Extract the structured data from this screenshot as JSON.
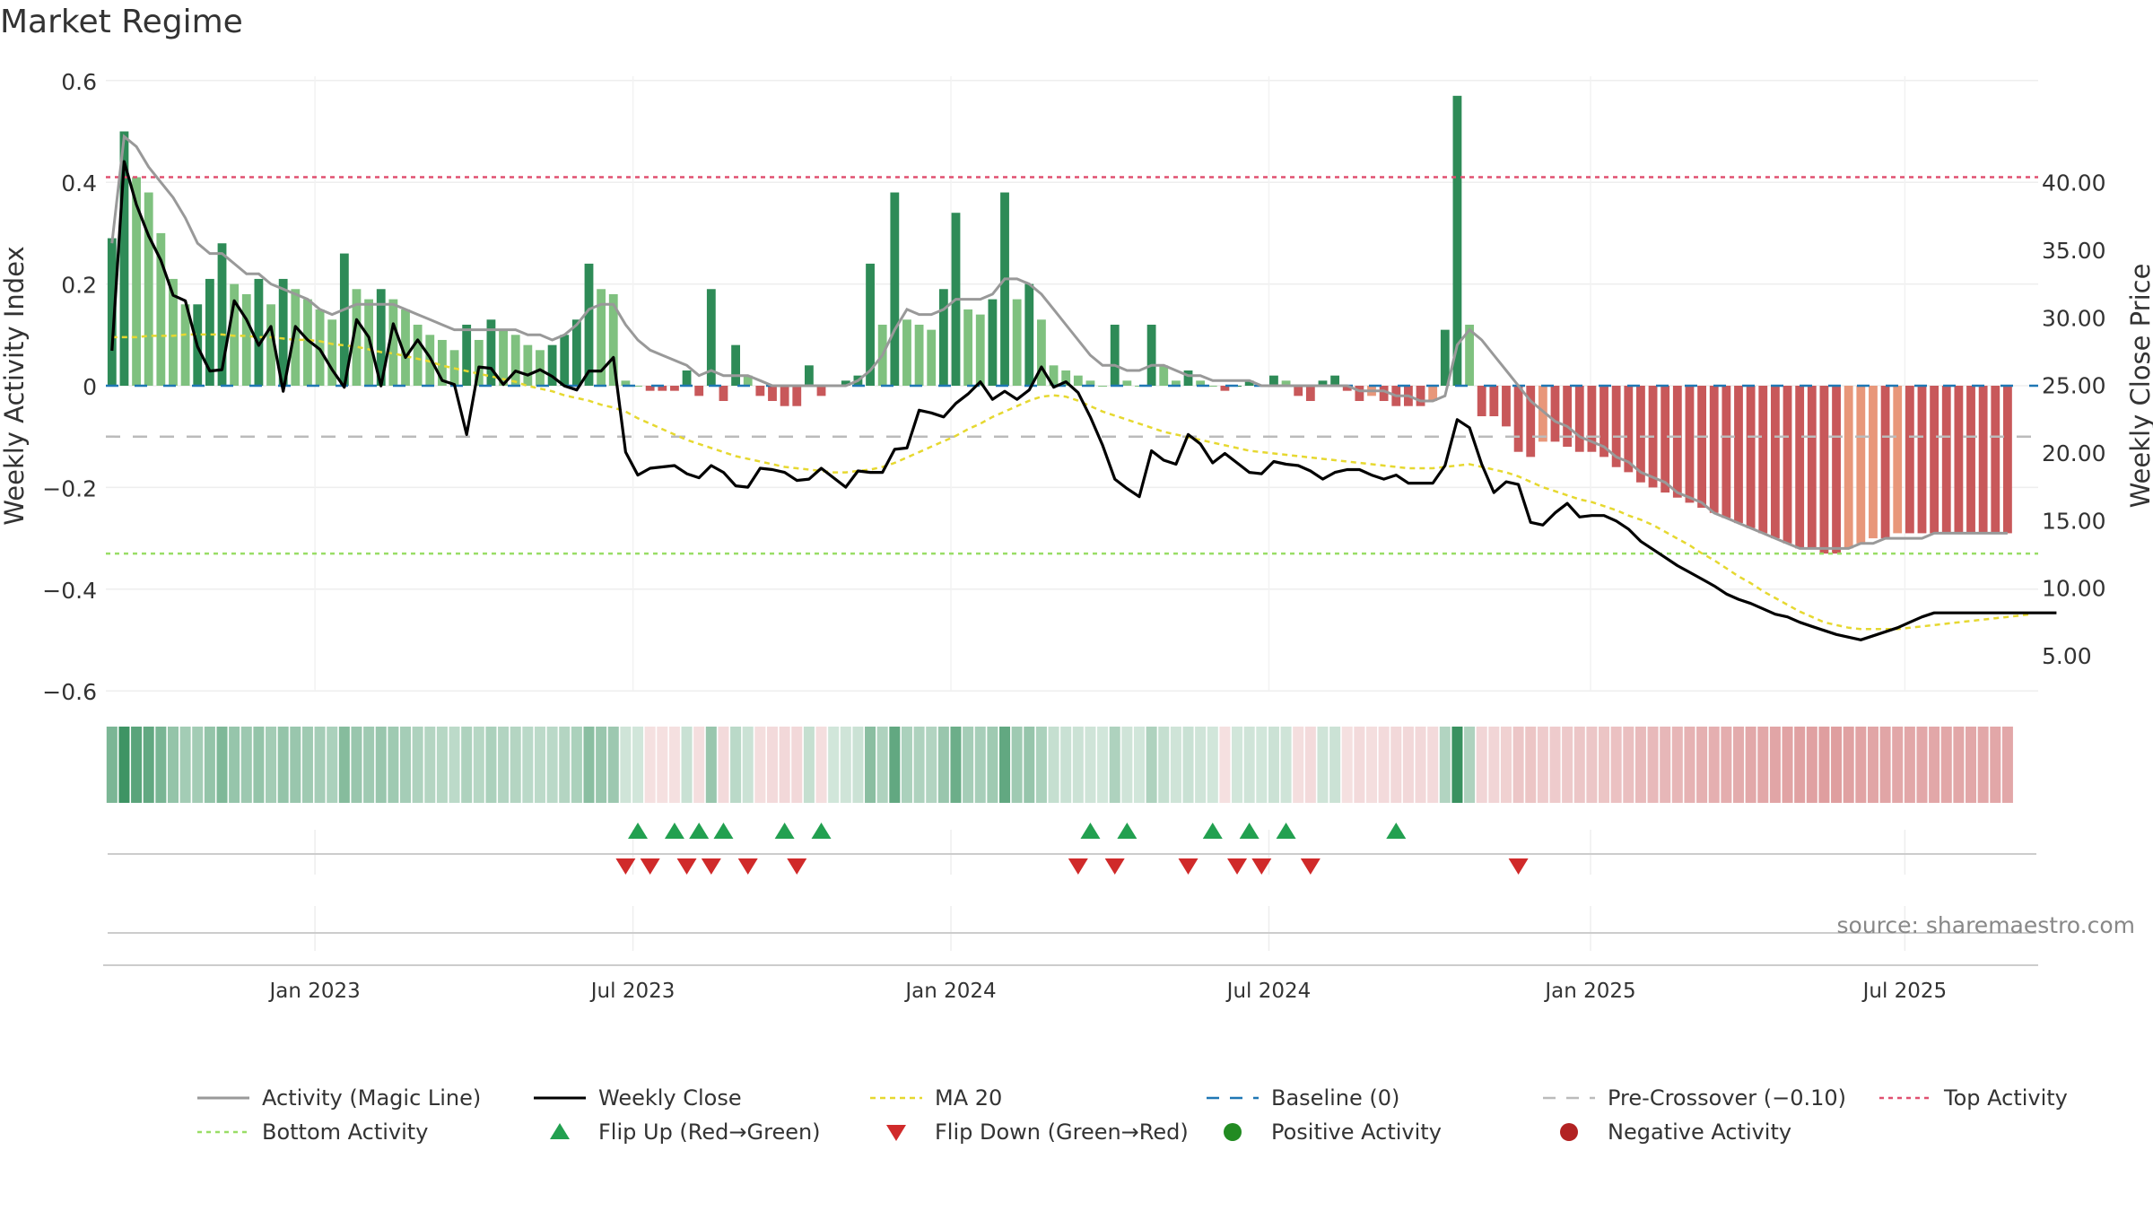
{
  "chart_data": {
    "type": "bar",
    "title": "Market Regime",
    "source": "source: sharemaestro.com",
    "ylabel_left": "Weekly Activity Index",
    "ylabel_right": "Weekly Close Price",
    "y_left_ticks": [
      "0.6",
      "0.4",
      "0.2",
      "0",
      "−0.2",
      "−0.4",
      "−0.6"
    ],
    "y_left_tick_values": [
      0.6,
      0.4,
      0.2,
      0,
      -0.2,
      -0.4,
      -0.6
    ],
    "y_right_ticks": [
      "40.00",
      "35.00",
      "30.00",
      "25.00",
      "20.00",
      "15.00",
      "10.00",
      "5.00"
    ],
    "y_right_tick_values": [
      40,
      35,
      30,
      25,
      20,
      15,
      10,
      5
    ],
    "ylim_left": [
      -0.63,
      0.6
    ],
    "ylim_right": [
      3.2,
      43.5
    ],
    "x_ticks": [
      "Jan 2023",
      "Jul 2023",
      "Jan 2024",
      "Jul 2024",
      "Jan 2025",
      "Jul 2025"
    ],
    "x_tick_weeks": [
      17.1,
      43.1,
      69.1,
      95.1,
      121.4,
      147.1
    ],
    "weeks_total": 158,
    "reference_lines": {
      "baseline": 0,
      "pre_crossover": -0.1,
      "top_activity": 0.41,
      "bottom_activity": -0.33
    },
    "series": [
      {
        "name": "Activity",
        "values": [
          0.29,
          0.5,
          0.41,
          0.38,
          0.3,
          0.21,
          0.16,
          0.16,
          0.21,
          0.28,
          0.2,
          0.18,
          0.21,
          0.16,
          0.21,
          0.19,
          0.17,
          0.15,
          0.13,
          0.26,
          0.19,
          0.17,
          0.19,
          0.17,
          0.15,
          0.12,
          0.1,
          0.09,
          0.07,
          0.12,
          0.09,
          0.13,
          0.11,
          0.1,
          0.08,
          0.07,
          0.08,
          0.1,
          0.13,
          0.24,
          0.19,
          0.18,
          0.01,
          0,
          -0.01,
          -0.01,
          -0.01,
          0.03,
          -0.02,
          0.19,
          -0.03,
          0.08,
          0.02,
          -0.02,
          -0.03,
          -0.04,
          -0.04,
          0.04,
          -0.02,
          0,
          0.01,
          0.02,
          0.24,
          0.12,
          0.38,
          0.13,
          0.12,
          0.11,
          0.19,
          0.34,
          0.15,
          0.14,
          0.17,
          0.38,
          0.17,
          0.2,
          0.13,
          0.04,
          0.03,
          0.02,
          0.01,
          0,
          0.12,
          0.01,
          0,
          0.12,
          0.04,
          0.01,
          0.03,
          0.01,
          0,
          -0.01,
          0,
          0.01,
          0,
          0.02,
          0.01,
          -0.02,
          -0.03,
          0.01,
          0.02,
          -0.01,
          -0.03,
          -0.02,
          -0.03,
          -0.04,
          -0.04,
          -0.04,
          -0.03,
          0.11,
          0.57,
          0.12,
          -0.06,
          -0.06,
          -0.08,
          -0.13,
          -0.14,
          -0.11,
          -0.11,
          -0.12,
          -0.13,
          -0.13,
          -0.14,
          -0.16,
          -0.17,
          -0.19,
          -0.2,
          -0.21,
          -0.22,
          -0.23,
          -0.24,
          -0.25,
          -0.26,
          -0.27,
          -0.28,
          -0.29,
          -0.3,
          -0.31,
          -0.32,
          -0.32,
          -0.33,
          -0.33,
          -0.32,
          -0.31,
          -0.3,
          -0.3,
          -0.29,
          -0.29,
          -0.29,
          -0.29,
          -0.29,
          -0.29,
          -0.29,
          -0.29,
          -0.29,
          -0.29
        ]
      },
      {
        "name": "Activity (Magic Line)",
        "values": [
          0.28,
          0.49,
          0.47,
          0.43,
          0.4,
          0.37,
          0.33,
          0.28,
          0.26,
          0.26,
          0.24,
          0.22,
          0.22,
          0.2,
          0.19,
          0.18,
          0.17,
          0.15,
          0.14,
          0.15,
          0.16,
          0.16,
          0.16,
          0.16,
          0.15,
          0.14,
          0.13,
          0.12,
          0.11,
          0.11,
          0.11,
          0.11,
          0.11,
          0.11,
          0.1,
          0.1,
          0.09,
          0.1,
          0.12,
          0.15,
          0.16,
          0.16,
          0.12,
          0.09,
          0.07,
          0.06,
          0.05,
          0.04,
          0.02,
          0.03,
          0.02,
          0.02,
          0.02,
          0.01,
          0,
          0,
          0,
          0,
          0,
          0,
          0,
          0.01,
          0.03,
          0.06,
          0.11,
          0.15,
          0.14,
          0.14,
          0.15,
          0.17,
          0.17,
          0.17,
          0.18,
          0.21,
          0.21,
          0.2,
          0.18,
          0.15,
          0.12,
          0.09,
          0.06,
          0.04,
          0.04,
          0.03,
          0.03,
          0.04,
          0.04,
          0.03,
          0.02,
          0.02,
          0.01,
          0.01,
          0.01,
          0.01,
          0,
          0,
          0,
          0,
          0,
          0,
          0,
          0,
          -0.01,
          -0.01,
          -0.01,
          -0.02,
          -0.02,
          -0.03,
          -0.03,
          -0.02,
          0.08,
          0.11,
          0.09,
          0.06,
          0.03,
          0,
          -0.03,
          -0.05,
          -0.07,
          -0.08,
          -0.1,
          -0.11,
          -0.12,
          -0.14,
          -0.15,
          -0.17,
          -0.18,
          -0.19,
          -0.21,
          -0.22,
          -0.23,
          -0.25,
          -0.26,
          -0.27,
          -0.28,
          -0.29,
          -0.3,
          -0.31,
          -0.32,
          -0.32,
          -0.32,
          -0.32,
          -0.32,
          -0.31,
          -0.31,
          -0.3,
          -0.3,
          -0.3,
          -0.3,
          -0.29,
          -0.29,
          -0.29,
          -0.29,
          -0.29,
          -0.29,
          -0.29
        ]
      },
      {
        "name": "Weekly Close",
        "values": [
          27.5,
          41.5,
          38.3,
          36,
          34.2,
          31.6,
          31.2,
          27.8,
          26,
          26.1,
          31.2,
          29.8,
          27.9,
          29.3,
          24.5,
          29.3,
          28.3,
          27.6,
          26.1,
          24.8,
          29.8,
          28.5,
          24.9,
          29.5,
          27,
          28.3,
          27,
          25.3,
          25,
          21.3,
          26.3,
          26.2,
          25,
          26,
          25.7,
          26.1,
          25.6,
          24.9,
          24.6,
          26,
          26,
          27,
          20,
          18.3,
          18.8,
          18.9,
          19,
          18.4,
          18.1,
          19,
          18.5,
          17.5,
          17.4,
          18.8,
          18.7,
          18.5,
          17.9,
          18,
          18.8,
          18.1,
          17.4,
          18.6,
          18.5,
          18.5,
          20.2,
          20.3,
          23.1,
          22.9,
          22.6,
          23.6,
          24.3,
          25.2,
          23.9,
          24.5,
          23.9,
          24.6,
          26.3,
          24.8,
          25.2,
          24.4,
          22.6,
          20.5,
          18,
          17.3,
          16.7,
          20.1,
          19.4,
          19.1,
          21.3,
          20.6,
          19.2,
          19.9,
          19.2,
          18.5,
          18.4,
          19.3,
          19.1,
          19,
          18.6,
          18,
          18.5,
          18.7,
          18.7,
          18.3,
          18,
          18.3,
          17.7,
          17.7,
          17.7,
          19,
          22.4,
          21.8,
          19.1,
          17,
          17.8,
          17.6,
          14.8,
          14.6,
          15.5,
          16.2,
          15.2,
          15.3,
          15.3,
          14.9,
          14.3,
          13.4,
          12.8,
          12.2,
          11.6,
          11.1,
          10.6,
          10.1,
          9.5,
          9.1,
          8.8,
          8.4,
          8,
          7.8,
          7.4,
          7.1,
          6.8,
          6.5,
          6.3,
          6.1,
          6.4,
          6.7,
          7,
          7.4,
          7.8,
          8.1,
          8.1,
          8.1,
          8.1,
          8.1,
          8.1,
          8.1,
          8.1,
          8.1,
          8.1,
          8.1
        ]
      },
      {
        "name": "MA 20",
        "values": [
          28.5,
          28.5,
          28.5,
          28.6,
          28.6,
          28.6,
          28.7,
          28.7,
          28.7,
          28.7,
          28.6,
          28.6,
          28.5,
          28.5,
          28.4,
          28.3,
          28.3,
          28.2,
          28,
          27.9,
          27.8,
          27.6,
          27.4,
          27.3,
          27.1,
          26.9,
          26.7,
          26.4,
          26.2,
          26,
          25.8,
          25.6,
          25.4,
          25.2,
          24.9,
          24.7,
          24.5,
          24.2,
          24,
          23.8,
          23.5,
          23.3,
          23,
          22.5,
          22.1,
          21.7,
          21.3,
          20.9,
          20.6,
          20.3,
          20,
          19.7,
          19.5,
          19.3,
          19.1,
          18.9,
          18.8,
          18.7,
          18.6,
          18.5,
          18.5,
          18.6,
          18.7,
          18.9,
          19.2,
          19.6,
          20,
          20.4,
          20.8,
          21.2,
          21.7,
          22.1,
          22.6,
          23,
          23.4,
          23.8,
          24.1,
          24.2,
          24.1,
          23.8,
          23.4,
          23,
          22.7,
          22.4,
          22.1,
          21.8,
          21.5,
          21.3,
          21.1,
          20.9,
          20.7,
          20.5,
          20.3,
          20.1,
          20,
          19.9,
          19.8,
          19.7,
          19.6,
          19.5,
          19.4,
          19.3,
          19.2,
          19.1,
          19,
          18.9,
          18.8,
          18.8,
          18.8,
          18.9,
          19,
          19.1,
          18.9,
          18.7,
          18.5,
          18.2,
          17.8,
          17.4,
          17.1,
          16.8,
          16.5,
          16.3,
          16,
          15.7,
          15.3,
          15,
          14.6,
          14.1,
          13.6,
          13.1,
          12.5,
          12,
          11.4,
          10.8,
          10.3,
          9.7,
          9.2,
          8.7,
          8.2,
          7.8,
          7.4,
          7.2,
          7,
          6.9,
          6.9,
          6.9,
          6.9,
          7,
          7.1,
          7.2,
          7.3,
          7.4,
          7.5,
          7.6,
          7.7,
          7.8,
          7.9,
          8
        ]
      }
    ],
    "flip_up_weeks": [
      43,
      46,
      48,
      50,
      55,
      58,
      80,
      83,
      90,
      93,
      96,
      105
    ],
    "flip_down_weeks": [
      42,
      44,
      47,
      49,
      52,
      56,
      79,
      82,
      88,
      92,
      94,
      98,
      115
    ],
    "legend": [
      "Activity (Magic Line)",
      "Weekly Close",
      "MA 20",
      "Baseline (0)",
      "Pre-Crossover (−0.10)",
      "Top Activity",
      "Bottom Activity",
      "Flip Up (Red→Green)",
      "Flip Down (Green→Red)",
      "Positive Activity",
      "Negative Activity"
    ],
    "colors": {
      "pos_strong": "#2e8b57",
      "pos_weak": "#7fc17f",
      "neg_strong": "#c8585a",
      "neg_weak": "#e8977a",
      "magic_line": "#999999",
      "close": "#000000",
      "ma20": "#e6d830",
      "baseline": "#1f77b4",
      "pre_crossover": "#bbbbbb",
      "top": "#e05070",
      "bottom": "#99dd66",
      "flip_up": "#22a050",
      "flip_down": "#d02a2a",
      "positive_dot": "#228b22",
      "negative_dot": "#b22222"
    }
  }
}
